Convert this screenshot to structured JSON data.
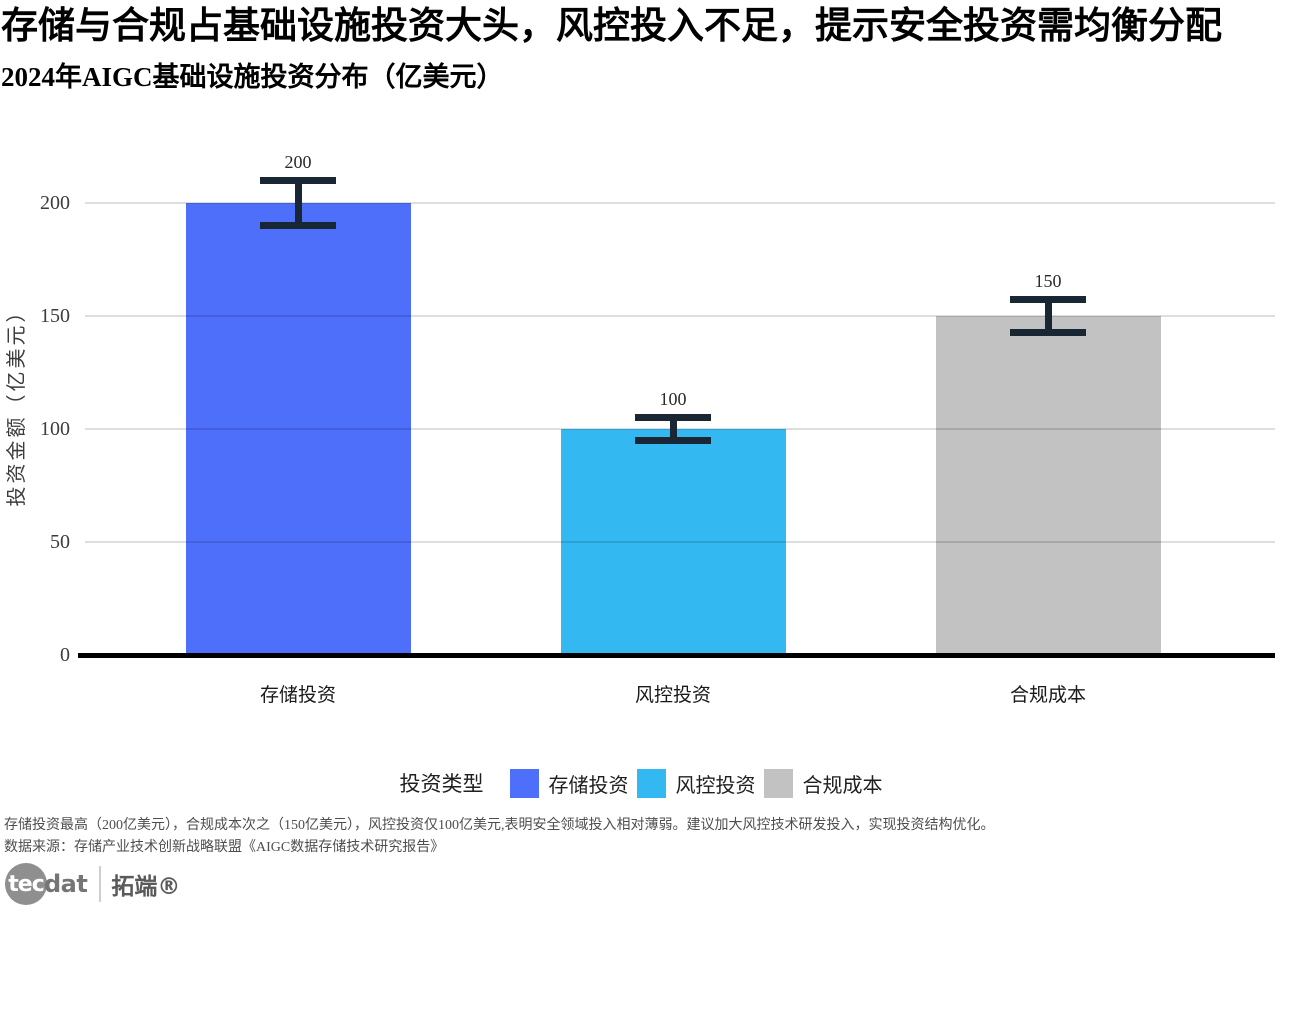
{
  "title": "存储与合规占基础设施投资大头，风控投入不足，提示安全投资需均衡分配",
  "subtitle": "2024年AIGC基础设施投资分布（亿美元）",
  "chart_data": {
    "type": "bar",
    "title": "2024年AIGC基础设施投资分布（亿美元）",
    "categories": [
      "存储投资",
      "风控投资",
      "合规成本"
    ],
    "values": [
      200,
      100,
      150
    ],
    "errors": [
      10,
      5,
      7.5
    ],
    "value_labels": [
      "200",
      "100",
      "150"
    ],
    "bar_colors": [
      "#4D6FFA",
      "#33B8F2",
      "#C2C2C2"
    ],
    "errorbar_color": "#182733",
    "xlabel": "",
    "ylabel": "投资金额（亿美元）",
    "yticks": [
      0,
      50,
      100,
      150,
      200
    ],
    "ylim": [
      0,
      227
    ],
    "grid": true,
    "legend": {
      "title": "投资类型",
      "position": "bottom",
      "items": [
        {
          "label": "存储投资",
          "color": "#4D6FFA"
        },
        {
          "label": "风控投资",
          "color": "#33B8F2"
        },
        {
          "label": "合规成本",
          "color": "#C2C2C2"
        }
      ]
    }
  },
  "footer": {
    "note": "存储投资最高（200亿美元），合规成本次之（150亿美元），风控投资仅100亿美元,表明安全领域投入相对薄弱。建议加大风控技术研发投入，实现投资结构优化。",
    "source": "数据来源：存储产业技术创新战略联盟《AIGC数据存储技术研究报告》"
  },
  "logo": {
    "brand_part1": "tec",
    "brand_part2": "dat",
    "cn_name": "拓端®"
  }
}
